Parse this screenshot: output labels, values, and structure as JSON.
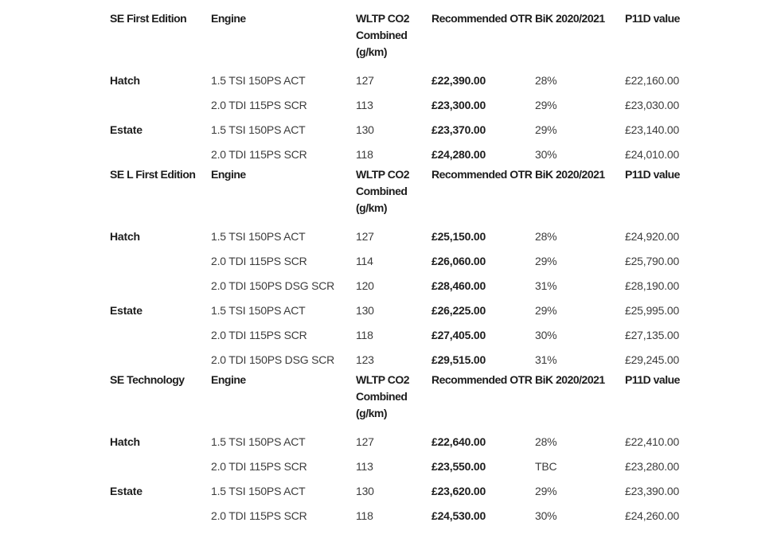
{
  "page": {
    "background": "#ffffff"
  },
  "colors": {
    "text_bold": "#1d1d1d",
    "text_regular": "#3c3c3c",
    "background": "#ffffff"
  },
  "table": {
    "sections": [
      {
        "headers": {
          "trim": "SE First Edition",
          "engine": "Engine",
          "co2": "WLTP CO2 Combined (g/km)",
          "otr": "Recommended OTR",
          "bik": "BiK 2020/2021",
          "p11d": "P11D value"
        },
        "rows": [
          {
            "trim": "Hatch",
            "engine": "1.5 TSI 150PS ACT",
            "co2": "127",
            "otr": "£22,390.00",
            "bik": "28%",
            "p11d": "£22,160.00"
          },
          {
            "trim": "",
            "engine": "2.0 TDI 115PS SCR",
            "co2": "113",
            "otr": "£23,300.00",
            "bik": "29%",
            "p11d": "£23,030.00"
          },
          {
            "trim": "Estate",
            "engine": "1.5 TSI 150PS ACT",
            "co2": "130",
            "otr": "£23,370.00",
            "bik": "29%",
            "p11d": "£23,140.00"
          },
          {
            "trim": "",
            "engine": "2.0 TDI 115PS SCR",
            "co2": "118",
            "otr": "£24,280.00",
            "bik": "30%",
            "p11d": "£24,010.00"
          }
        ]
      },
      {
        "headers": {
          "trim": "SE L First Edition",
          "engine": "Engine",
          "co2": "WLTP CO2 Combined (g/km)",
          "otr": "Recommended OTR",
          "bik": "BiK 2020/2021",
          "p11d": "P11D value"
        },
        "rows": [
          {
            "trim": "Hatch",
            "engine": "1.5 TSI 150PS ACT",
            "co2": "127",
            "otr": "£25,150.00",
            "bik": "28%",
            "p11d": "£24,920.00"
          },
          {
            "trim": "",
            "engine": "2.0 TDI 115PS SCR",
            "co2": "114",
            "otr": "£26,060.00",
            "bik": "29%",
            "p11d": "£25,790.00"
          },
          {
            "trim": "",
            "engine": "2.0 TDI 150PS DSG SCR",
            "co2": "120",
            "otr": "£28,460.00",
            "bik": "31%",
            "p11d": "£28,190.00"
          },
          {
            "trim": "Estate",
            "engine": "1.5 TSI 150PS ACT",
            "co2": "130",
            "otr": "£26,225.00",
            "bik": "29%",
            "p11d": "£25,995.00"
          },
          {
            "trim": "",
            "engine": "2.0 TDI 115PS SCR",
            "co2": "118",
            "otr": "£27,405.00",
            "bik": "30%",
            "p11d": "£27,135.00"
          },
          {
            "trim": "",
            "engine": "2.0 TDI 150PS DSG SCR",
            "co2": "123",
            "otr": "£29,515.00",
            "bik": "31%",
            "p11d": "£29,245.00"
          }
        ]
      },
      {
        "headers": {
          "trim": "SE Technology",
          "engine": "Engine",
          "co2": "WLTP CO2 Combined (g/km)",
          "otr": "Recommended OTR",
          "bik": "BiK 2020/2021",
          "p11d": "P11D value"
        },
        "rows": [
          {
            "trim": "Hatch",
            "engine": "1.5 TSI 150PS ACT",
            "co2": "127",
            "otr": "£22,640.00",
            "bik": "28%",
            "p11d": "£22,410.00"
          },
          {
            "trim": "",
            "engine": "2.0 TDI 115PS SCR",
            "co2": "113",
            "otr": "£23,550.00",
            "bik": "TBC",
            "p11d": "£23,280.00"
          },
          {
            "trim": "Estate",
            "engine": "1.5 TSI 150PS ACT",
            "co2": "130",
            "otr": "£23,620.00",
            "bik": "29%",
            "p11d": "£23,390.00"
          },
          {
            "trim": "",
            "engine": "2.0 TDI 115PS SCR",
            "co2": "118",
            "otr": "£24,530.00",
            "bik": "30%",
            "p11d": "£24,260.00"
          }
        ]
      }
    ]
  }
}
